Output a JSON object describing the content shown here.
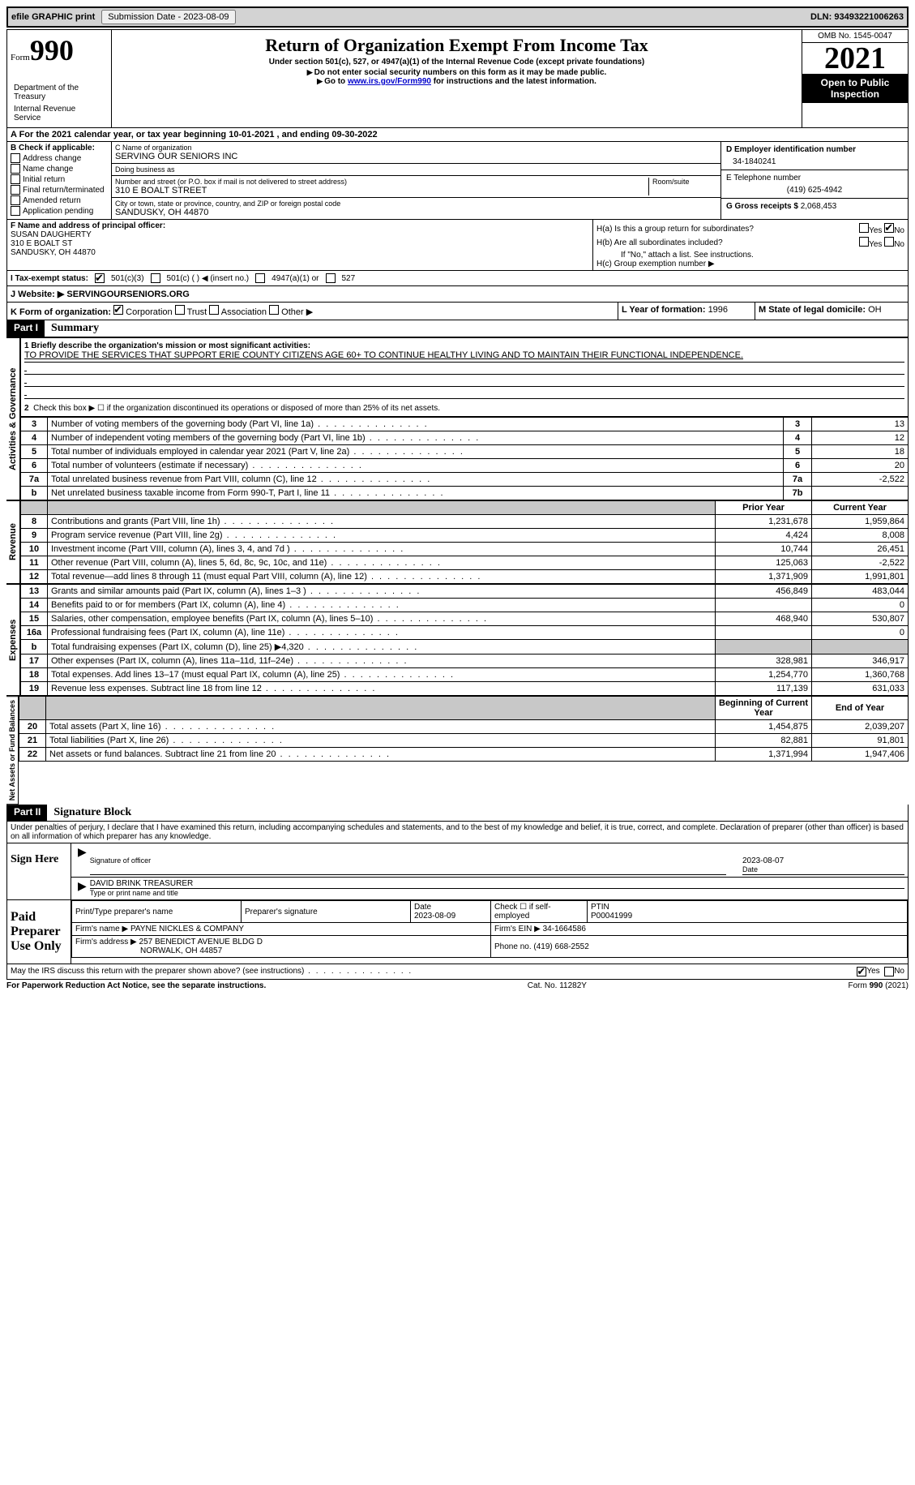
{
  "topbar": {
    "efile": "efile GRAPHIC print",
    "sub_date_lbl": "Submission Date - 2023-08-09",
    "dln_lbl": "DLN: 93493221006263"
  },
  "header": {
    "form_word": "Form",
    "form_num": "990",
    "title": "Return of Organization Exempt From Income Tax",
    "sub1": "Under section 501(c), 527, or 4947(a)(1) of the Internal Revenue Code (except private foundations)",
    "sub2": "Do not enter social security numbers on this form as it may be made public.",
    "sub3_a": "Go to ",
    "sub3_link": "www.irs.gov/Form990",
    "sub3_b": " for instructions and the latest information.",
    "omb": "OMB No. 1545-0047",
    "year": "2021",
    "open": "Open to Public Inspection",
    "dept": "Department of the Treasury",
    "irs": "Internal Revenue Service"
  },
  "rowA": {
    "text_a": "A For the 2021 calendar year, or tax year beginning ",
    "begin": "10-01-2021",
    "mid": "  , and ending ",
    "end": "09-30-2022"
  },
  "colB": {
    "hdr": "B Check if applicable:",
    "opts": [
      "Address change",
      "Name change",
      "Initial return",
      "Final return/terminated",
      "Amended return",
      "Application pending"
    ]
  },
  "colC": {
    "name_lbl": "C Name of organization",
    "name": "SERVING OUR SENIORS INC",
    "dba_lbl": "Doing business as",
    "dba": "",
    "addr_lbl": "Number and street (or P.O. box if mail is not delivered to street address)",
    "room_lbl": "Room/suite",
    "addr": "310 E BOALT STREET",
    "city_lbl": "City or town, state or province, country, and ZIP or foreign postal code",
    "city": "SANDUSKY, OH  44870"
  },
  "colD": {
    "ein_lbl": "D Employer identification number",
    "ein": "34-1840241",
    "tel_lbl": "E Telephone number",
    "tel": "(419) 625-4942",
    "gross_lbl": "G Gross receipts $",
    "gross": "2,068,453"
  },
  "rowF": {
    "lbl": "F Name and address of principal officer:",
    "name": "SUSAN DAUGHERTY",
    "addr": "310 E BOALT ST",
    "city": "SANDUSKY, OH  44870"
  },
  "rowH": {
    "ha": "H(a)  Is this a group return for subordinates?",
    "hb": "H(b)  Are all subordinates included?",
    "hb_note": "If \"No,\" attach a list. See instructions.",
    "hc": "H(c)  Group exemption number ▶",
    "yes": "Yes",
    "no": "No"
  },
  "rowI": {
    "lbl": "I  Tax-exempt status:",
    "o1": "501(c)(3)",
    "o2": "501(c) (  ) ◀ (insert no.)",
    "o3": "4947(a)(1) or",
    "o4": "527"
  },
  "rowJ": {
    "lbl": "J  Website: ▶",
    "val": "SERVINGOURSENIORS.ORG"
  },
  "rowK": {
    "lbl": "K Form of organization:",
    "opts": [
      "Corporation",
      "Trust",
      "Association",
      "Other ▶"
    ],
    "l_lbl": "L Year of formation: ",
    "l_val": "1996",
    "m_lbl": "M State of legal domicile: ",
    "m_val": "OH"
  },
  "part1": {
    "hdr": "Part I",
    "title": "Summary",
    "l1_lbl": "1  Briefly describe the organization's mission or most significant activities:",
    "l1_txt": "TO PROVIDE THE SERVICES THAT SUPPORT ERIE COUNTY CITIZENS AGE 60+ TO CONTINUE HEALTHY LIVING AND TO MAINTAIN THEIR FUNCTIONAL INDEPENDENCE.",
    "l2": "Check this box ▶ ☐ if the organization discontinued its operations or disposed of more than 25% of its net assets.",
    "tab_ag": "Activities & Governance",
    "tab_rev": "Revenue",
    "tab_exp": "Expenses",
    "tab_na": "Net Assets or Fund Balances",
    "lines_ag": [
      {
        "n": "3",
        "d": "Number of voting members of the governing body (Part VI, line 1a)",
        "b": "3",
        "v": "13"
      },
      {
        "n": "4",
        "d": "Number of independent voting members of the governing body (Part VI, line 1b)",
        "b": "4",
        "v": "12"
      },
      {
        "n": "5",
        "d": "Total number of individuals employed in calendar year 2021 (Part V, line 2a)",
        "b": "5",
        "v": "18"
      },
      {
        "n": "6",
        "d": "Total number of volunteers (estimate if necessary)",
        "b": "6",
        "v": "20"
      },
      {
        "n": "7a",
        "d": "Total unrelated business revenue from Part VIII, column (C), line 12",
        "b": "7a",
        "v": "-2,522"
      },
      {
        "n": "b",
        "d": "Net unrelated business taxable income from Form 990-T, Part I, line 11",
        "b": "7b",
        "v": ""
      }
    ],
    "hdr_prior": "Prior Year",
    "hdr_curr": "Current Year",
    "lines_rev": [
      {
        "n": "8",
        "d": "Contributions and grants (Part VIII, line 1h)",
        "p": "1,231,678",
        "c": "1,959,864"
      },
      {
        "n": "9",
        "d": "Program service revenue (Part VIII, line 2g)",
        "p": "4,424",
        "c": "8,008"
      },
      {
        "n": "10",
        "d": "Investment income (Part VIII, column (A), lines 3, 4, and 7d )",
        "p": "10,744",
        "c": "26,451"
      },
      {
        "n": "11",
        "d": "Other revenue (Part VIII, column (A), lines 5, 6d, 8c, 9c, 10c, and 11e)",
        "p": "125,063",
        "c": "-2,522"
      },
      {
        "n": "12",
        "d": "Total revenue—add lines 8 through 11 (must equal Part VIII, column (A), line 12)",
        "p": "1,371,909",
        "c": "1,991,801"
      }
    ],
    "lines_exp": [
      {
        "n": "13",
        "d": "Grants and similar amounts paid (Part IX, column (A), lines 1–3 )",
        "p": "456,849",
        "c": "483,044"
      },
      {
        "n": "14",
        "d": "Benefits paid to or for members (Part IX, column (A), line 4)",
        "p": "",
        "c": "0"
      },
      {
        "n": "15",
        "d": "Salaries, other compensation, employee benefits (Part IX, column (A), lines 5–10)",
        "p": "468,940",
        "c": "530,807"
      },
      {
        "n": "16a",
        "d": "Professional fundraising fees (Part IX, column (A), line 11e)",
        "p": "",
        "c": "0"
      },
      {
        "n": "b",
        "d": "Total fundraising expenses (Part IX, column (D), line 25) ▶4,320",
        "p": "shade",
        "c": "shade"
      },
      {
        "n": "17",
        "d": "Other expenses (Part IX, column (A), lines 11a–11d, 11f–24e)",
        "p": "328,981",
        "c": "346,917"
      },
      {
        "n": "18",
        "d": "Total expenses. Add lines 13–17 (must equal Part IX, column (A), line 25)",
        "p": "1,254,770",
        "c": "1,360,768"
      },
      {
        "n": "19",
        "d": "Revenue less expenses. Subtract line 18 from line 12",
        "p": "117,139",
        "c": "631,033"
      }
    ],
    "hdr_begin": "Beginning of Current Year",
    "hdr_end": "End of Year",
    "lines_na": [
      {
        "n": "20",
        "d": "Total assets (Part X, line 16)",
        "p": "1,454,875",
        "c": "2,039,207"
      },
      {
        "n": "21",
        "d": "Total liabilities (Part X, line 26)",
        "p": "82,881",
        "c": "91,801"
      },
      {
        "n": "22",
        "d": "Net assets or fund balances. Subtract line 21 from line 20",
        "p": "1,371,994",
        "c": "1,947,406"
      }
    ]
  },
  "part2": {
    "hdr": "Part II",
    "title": "Signature Block",
    "decl": "Under penalties of perjury, I declare that I have examined this return, including accompanying schedules and statements, and to the best of my knowledge and belief, it is true, correct, and complete. Declaration of preparer (other than officer) is based on all information of which preparer has any knowledge.",
    "sign_here": "Sign Here",
    "sig_officer": "Signature of officer",
    "sig_date": "2023-08-07",
    "date_lbl": "Date",
    "officer_name": "DAVID BRINK TREASURER",
    "type_name": "Type or print name and title",
    "paid_prep": "Paid Preparer Use Only",
    "pp_name_lbl": "Print/Type preparer's name",
    "pp_sig_lbl": "Preparer's signature",
    "pp_date_lbl": "Date",
    "pp_date": "2023-08-09",
    "pp_check": "Check ☐ if self-employed",
    "ptin_lbl": "PTIN",
    "ptin": "P00041999",
    "firm_name_lbl": "Firm's name   ▶",
    "firm_name": "PAYNE NICKLES & COMPANY",
    "firm_ein_lbl": "Firm's EIN ▶",
    "firm_ein": "34-1664586",
    "firm_addr_lbl": "Firm's address ▶",
    "firm_addr1": "257 BENEDICT AVENUE BLDG D",
    "firm_addr2": "NORWALK, OH  44857",
    "phone_lbl": "Phone no.",
    "phone": "(419) 668-2552",
    "discuss": "May the IRS discuss this return with the preparer shown above? (see instructions)",
    "yes": "Yes",
    "no": "No"
  },
  "footer": {
    "pra": "For Paperwork Reduction Act Notice, see the separate instructions.",
    "cat": "Cat. No. 11282Y",
    "form": "Form 990 (2021)"
  }
}
